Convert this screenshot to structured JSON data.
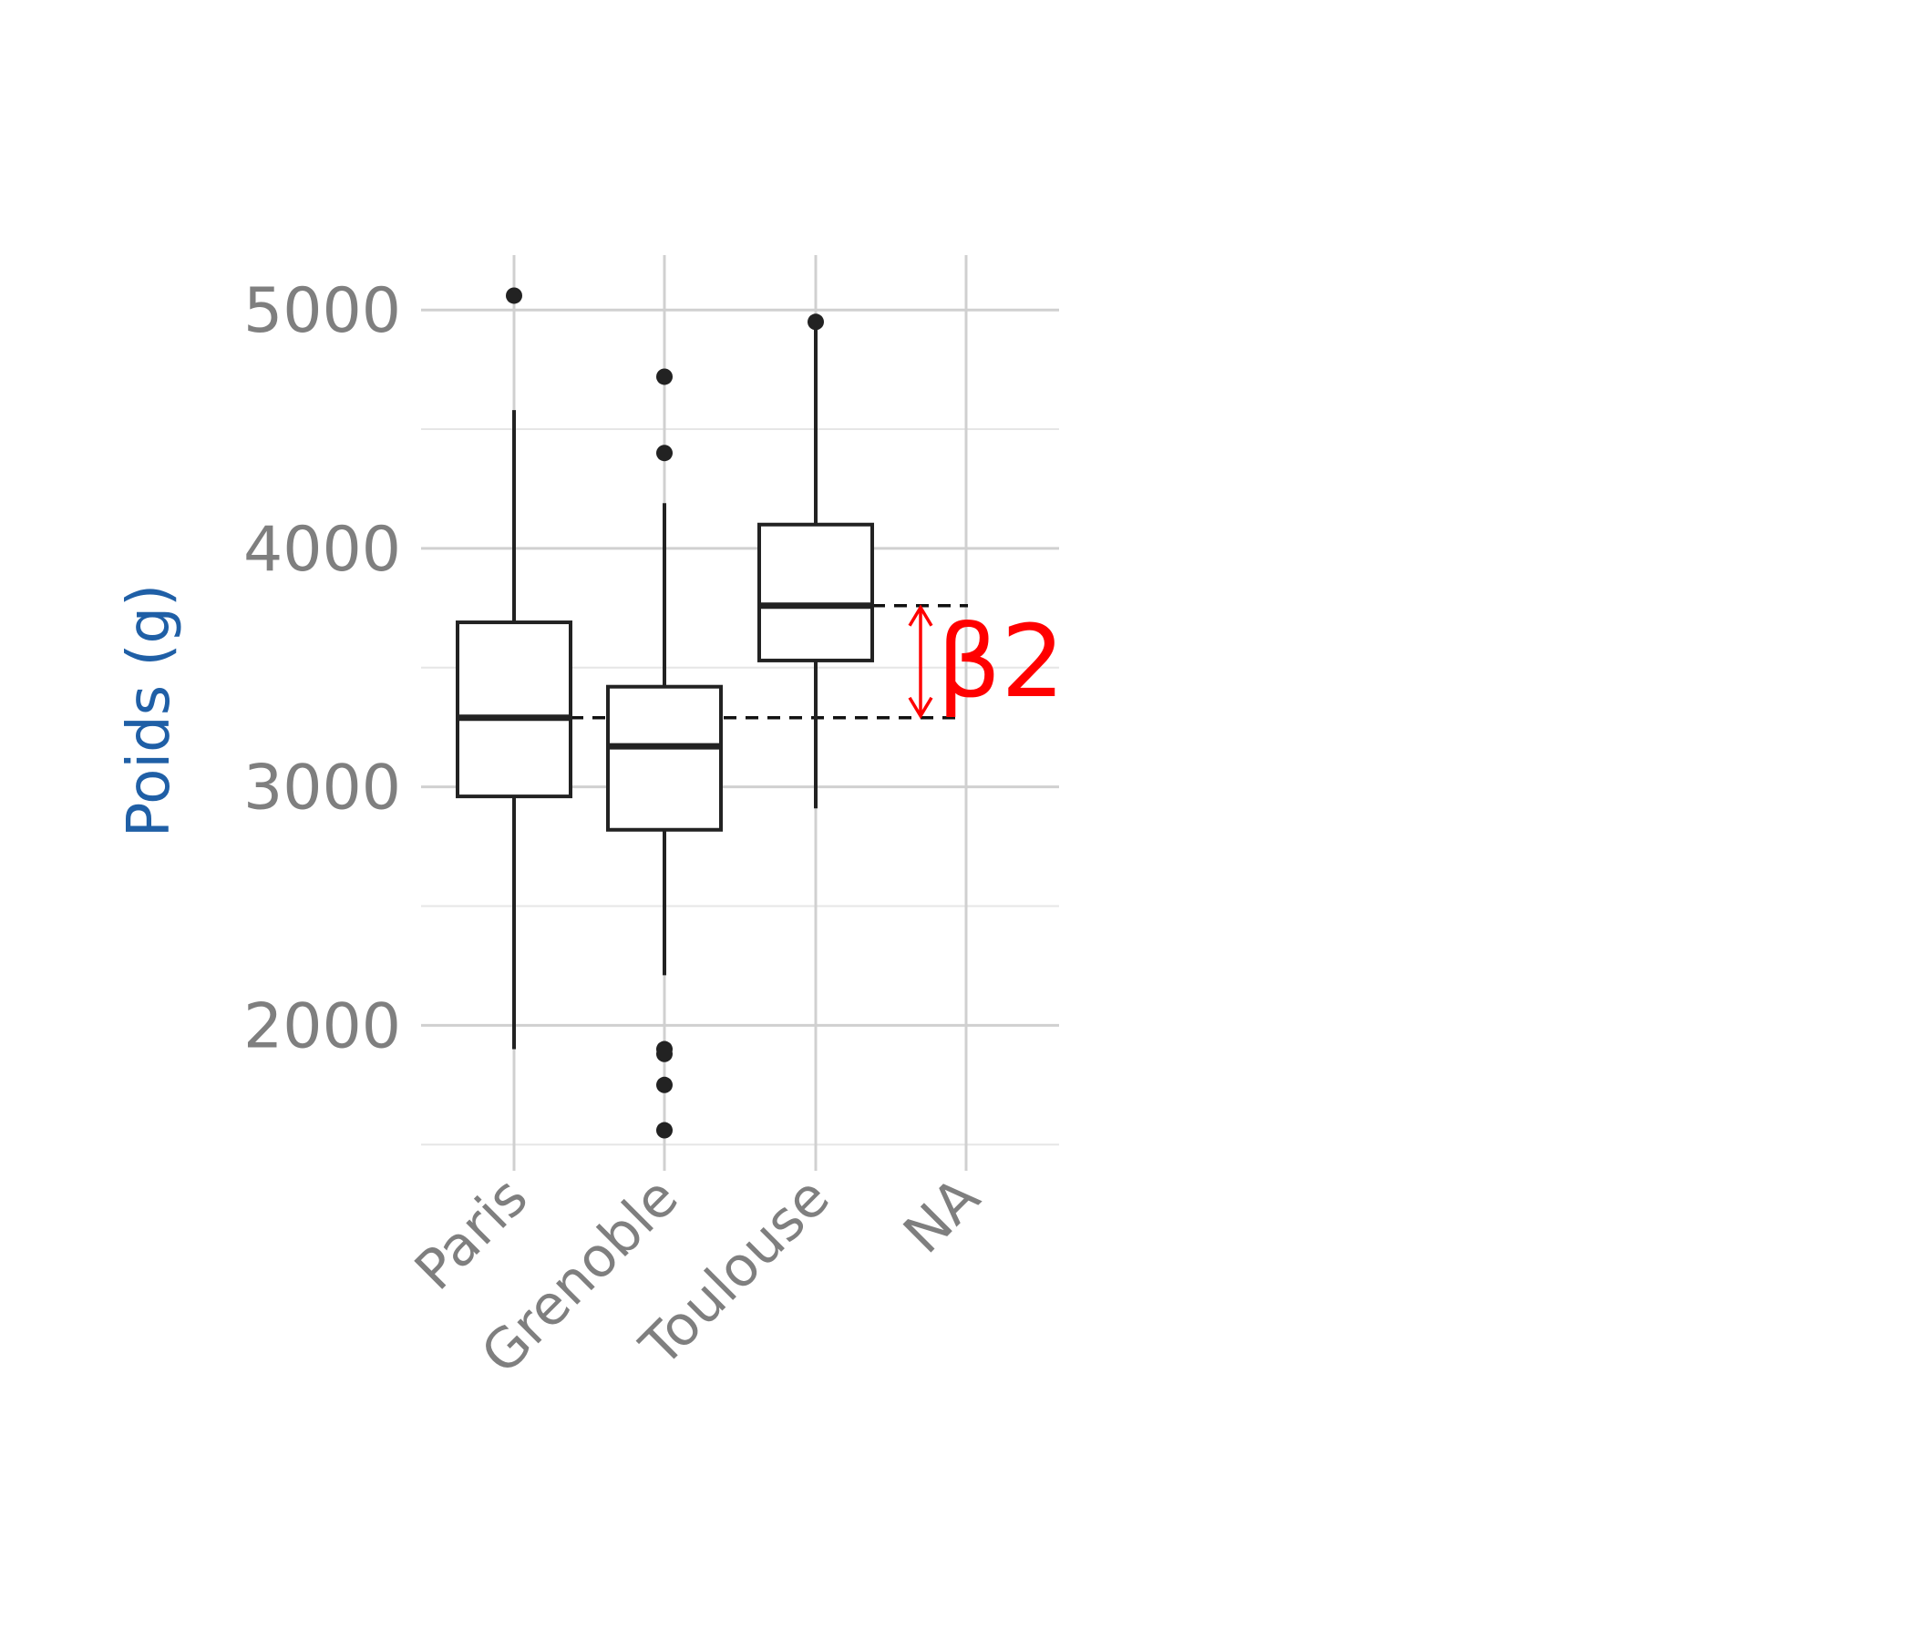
{
  "chart_data": {
    "type": "box",
    "title": "",
    "xlabel": "",
    "ylabel": "Poids (g)",
    "ylim": [
      1390,
      5230
    ],
    "y_major_ticks": [
      2000,
      3000,
      4000,
      5000
    ],
    "y_minor_ticks": [
      1500,
      2500,
      3500,
      4500
    ],
    "y_tick_labels": [
      "2000",
      "3000",
      "4000",
      "5000"
    ],
    "grid": true,
    "categories": [
      "Paris",
      "Grenoble",
      "Toulouse",
      "NA"
    ],
    "boxes": [
      {
        "category": "Paris",
        "whisker_low": 1900,
        "q1": 2960,
        "median": 3290,
        "q3": 3690,
        "whisker_high": 4580,
        "outliers": [
          5060
        ]
      },
      {
        "category": "Grenoble",
        "whisker_low": 2210,
        "q1": 2820,
        "median": 3170,
        "q3": 3420,
        "whisker_high": 4190,
        "outliers": [
          4720,
          4400,
          1900,
          1880,
          1750,
          1560
        ]
      },
      {
        "category": "Toulouse",
        "whisker_low": 2910,
        "q1": 3530,
        "median": 3760,
        "q3": 4100,
        "whisker_high": 4950,
        "outliers": [
          4950
        ]
      },
      {
        "category": "NA"
      }
    ],
    "annotation": {
      "label": "β2",
      "from_value": 3290,
      "to_value": 3760,
      "color": "#ff0000"
    },
    "colors": {
      "ylabel": "#1f5fa6",
      "annotation": "#ff0000",
      "ticks": "#7f7f7f",
      "boxes": "#222222"
    }
  }
}
